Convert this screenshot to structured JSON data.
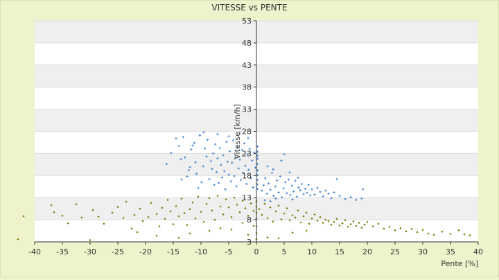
{
  "chart_data": {
    "type": "scatter",
    "title": "VITESSE vs PENTE",
    "xlabel": "Pente [%]",
    "ylabel": "Vitesse [km/h]",
    "xlim": [
      -40,
      40
    ],
    "ylim": [
      3,
      53
    ],
    "x_ticks": [
      "-40",
      "-35",
      "-30",
      "-25",
      "-20",
      "-15",
      "-10",
      "-5",
      "0",
      "5",
      "10",
      "15",
      "20",
      "25",
      "30",
      "35",
      "40"
    ],
    "y_ticks": [
      "3",
      "8",
      "13",
      "18",
      "23",
      "28",
      "33",
      "38",
      "43",
      "48",
      "53"
    ],
    "grid": "alternating horizontal bands",
    "legend": "none",
    "series": [
      {
        "color": "#3a7fd0",
        "marker": "plus",
        "values": [
          [
            -16.2,
            20.6
          ],
          [
            -15.4,
            23.1
          ],
          [
            -14.5,
            26.4
          ],
          [
            -14.0,
            24.7
          ],
          [
            -13.6,
            21.7
          ],
          [
            -13.2,
            26.7
          ],
          [
            -12.9,
            22.1
          ],
          [
            -12.5,
            17.8
          ],
          [
            -12.2,
            19.2
          ],
          [
            -11.8,
            23.9
          ],
          [
            -11.5,
            24.8
          ],
          [
            -11.2,
            25.4
          ],
          [
            -10.8,
            18.4
          ],
          [
            -10.5,
            15.2
          ],
          [
            -10.2,
            27.1
          ],
          [
            -9.9,
            16.5
          ],
          [
            -9.6,
            20.1
          ],
          [
            -9.3,
            24.1
          ],
          [
            -9.0,
            22.3
          ],
          [
            -8.8,
            26.1
          ],
          [
            -8.5,
            17.2
          ],
          [
            -8.2,
            21.3
          ],
          [
            -8.0,
            19.5
          ],
          [
            -7.8,
            23.0
          ],
          [
            -7.6,
            15.9
          ],
          [
            -7.4,
            25.1
          ],
          [
            -7.2,
            18.8
          ],
          [
            -7.0,
            21.9
          ],
          [
            -6.8,
            16.3
          ],
          [
            -6.6,
            24.2
          ],
          [
            -6.4,
            20.4
          ],
          [
            -6.2,
            17.5
          ],
          [
            -6.0,
            22.6
          ],
          [
            -5.8,
            19.0
          ],
          [
            -5.6,
            14.9
          ],
          [
            -5.4,
            25.6
          ],
          [
            -5.2,
            21.1
          ],
          [
            -5.0,
            18.2
          ],
          [
            -4.8,
            23.5
          ],
          [
            -4.6,
            16.7
          ],
          [
            -4.4,
            20.9
          ],
          [
            -4.2,
            26.0
          ],
          [
            -4.0,
            17.9
          ],
          [
            -3.8,
            22.2
          ],
          [
            -3.6,
            15.6
          ],
          [
            -3.4,
            24.5
          ],
          [
            -3.2,
            19.6
          ],
          [
            -3.0,
            21.6
          ],
          [
            -2.8,
            17.0
          ],
          [
            -2.6,
            23.8
          ],
          [
            -2.4,
            18.6
          ],
          [
            -2.2,
            25.3
          ],
          [
            -2.0,
            20.2
          ],
          [
            -1.8,
            16.1
          ],
          [
            -1.6,
            22.8
          ],
          [
            -1.4,
            19.3
          ],
          [
            -1.2,
            24.0
          ],
          [
            -1.0,
            17.4
          ],
          [
            -0.8,
            21.4
          ],
          [
            -0.6,
            15.3
          ],
          [
            -0.4,
            23.2
          ],
          [
            -0.2,
            19.8
          ],
          [
            -9.5,
            27.8
          ],
          [
            -7.0,
            27.4
          ],
          [
            -5.0,
            26.9
          ],
          [
            -3.0,
            27.6
          ],
          [
            -1.5,
            26.5
          ],
          [
            -11.0,
            21.0
          ],
          [
            -12.0,
            19.9
          ],
          [
            -13.5,
            17.1
          ],
          [
            0.2,
            23.4
          ],
          [
            0.2,
            21.8
          ],
          [
            0.2,
            20.6
          ],
          [
            0.2,
            19.2
          ],
          [
            0.2,
            18.1
          ],
          [
            0.2,
            17.0
          ],
          [
            0.2,
            16.0
          ],
          [
            0.2,
            15.0
          ],
          [
            0.2,
            22.5
          ],
          [
            0.2,
            24.6
          ],
          [
            1.0,
            14.6
          ],
          [
            1.3,
            15.8
          ],
          [
            1.6,
            17.4
          ],
          [
            1.9,
            13.9
          ],
          [
            2.2,
            16.2
          ],
          [
            2.5,
            14.8
          ],
          [
            2.8,
            18.6
          ],
          [
            3.1,
            13.4
          ],
          [
            3.4,
            15.5
          ],
          [
            3.7,
            16.9
          ],
          [
            4.0,
            14.2
          ],
          [
            4.3,
            17.8
          ],
          [
            4.6,
            13.1
          ],
          [
            4.9,
            15.1
          ],
          [
            5.2,
            16.5
          ],
          [
            5.5,
            14.0
          ],
          [
            5.8,
            17.1
          ],
          [
            6.1,
            13.6
          ],
          [
            6.4,
            15.7
          ],
          [
            6.7,
            14.4
          ],
          [
            7.0,
            16.8
          ],
          [
            7.3,
            13.2
          ],
          [
            7.6,
            15.3
          ],
          [
            7.9,
            14.7
          ],
          [
            8.2,
            16.1
          ],
          [
            8.5,
            13.8
          ],
          [
            8.8,
            15.0
          ],
          [
            9.1,
            14.1
          ],
          [
            9.4,
            15.9
          ],
          [
            9.7,
            13.5
          ],
          [
            10.0,
            14.9
          ],
          [
            10.5,
            13.7
          ],
          [
            11.0,
            15.2
          ],
          [
            11.5,
            14.3
          ],
          [
            12.0,
            13.3
          ],
          [
            12.5,
            14.6
          ],
          [
            13.0,
            13.9
          ],
          [
            13.5,
            12.9
          ],
          [
            14.0,
            14.2
          ],
          [
            15.0,
            13.4
          ],
          [
            16.0,
            12.7
          ],
          [
            17.0,
            13.1
          ],
          [
            18.0,
            12.5
          ],
          [
            19.0,
            12.8
          ],
          [
            19.2,
            14.9
          ],
          [
            14.5,
            17.2
          ],
          [
            2.0,
            20.1
          ],
          [
            3.0,
            19.4
          ],
          [
            4.5,
            21.4
          ],
          [
            5.0,
            22.8
          ],
          [
            6.0,
            18.7
          ],
          [
            7.5,
            17.5
          ],
          [
            1.5,
            12.4
          ],
          [
            2.5,
            12.2
          ],
          [
            3.5,
            12.8
          ],
          [
            6.5,
            12.6
          ]
        ]
      },
      {
        "color": "#7a7a00",
        "marker": "diamond",
        "values": [
          [
            -43.0,
            3.6
          ],
          [
            -42.0,
            8.8
          ],
          [
            -37.0,
            11.3
          ],
          [
            -36.5,
            9.7
          ],
          [
            -35.0,
            8.9
          ],
          [
            -34.0,
            7.2
          ],
          [
            -32.5,
            11.5
          ],
          [
            -31.5,
            8.5
          ],
          [
            -30.0,
            3.4
          ],
          [
            -29.5,
            10.2
          ],
          [
            -28.5,
            8.7
          ],
          [
            -27.5,
            7.1
          ],
          [
            -26.0,
            9.6
          ],
          [
            -25.0,
            10.9
          ],
          [
            -24.0,
            8.4
          ],
          [
            -23.5,
            12.1
          ],
          [
            -22.5,
            6.0
          ],
          [
            -22.0,
            9.1
          ],
          [
            -21.0,
            10.5
          ],
          [
            -20.5,
            7.7
          ],
          [
            -19.5,
            8.6
          ],
          [
            -19.0,
            11.8
          ],
          [
            -18.0,
            9.3
          ],
          [
            -17.5,
            6.5
          ],
          [
            -17.0,
            10.7
          ],
          [
            -16.5,
            8.2
          ],
          [
            -16.0,
            12.5
          ],
          [
            -15.5,
            9.9
          ],
          [
            -15.0,
            7.0
          ],
          [
            -14.5,
            11.1
          ],
          [
            -14.0,
            8.8
          ],
          [
            -13.5,
            12.8
          ],
          [
            -13.0,
            9.5
          ],
          [
            -12.5,
            6.8
          ],
          [
            -12.0,
            10.4
          ],
          [
            -11.5,
            11.9
          ],
          [
            -11.0,
            8.3
          ],
          [
            -10.5,
            13.2
          ],
          [
            -10.0,
            9.8
          ],
          [
            -9.5,
            7.5
          ],
          [
            -9.0,
            11.6
          ],
          [
            -8.5,
            12.9
          ],
          [
            -8.0,
            10.1
          ],
          [
            -7.5,
            8.0
          ],
          [
            -7.0,
            13.4
          ],
          [
            -6.5,
            11.0
          ],
          [
            -6.0,
            9.2
          ],
          [
            -5.5,
            12.6
          ],
          [
            -5.0,
            10.8
          ],
          [
            -4.5,
            8.6
          ],
          [
            -4.0,
            13.0
          ],
          [
            -3.5,
            11.4
          ],
          [
            -3.0,
            9.7
          ],
          [
            -2.5,
            12.3
          ],
          [
            -2.0,
            10.6
          ],
          [
            -1.5,
            8.9
          ],
          [
            -1.0,
            11.7
          ],
          [
            -0.5,
            10.0
          ],
          [
            -0.5,
            6.6
          ],
          [
            -2.5,
            7.3
          ],
          [
            -4.5,
            5.8
          ],
          [
            -6.5,
            6.1
          ],
          [
            -8.5,
            5.5
          ],
          [
            -12.0,
            4.9
          ],
          [
            -14.0,
            3.9
          ],
          [
            -18.0,
            4.4
          ],
          [
            -21.5,
            5.2
          ],
          [
            0.0,
            3.6
          ],
          [
            0.0,
            5.0
          ],
          [
            0.0,
            6.5
          ],
          [
            0.0,
            8.2
          ],
          [
            0.0,
            9.6
          ],
          [
            0.0,
            11.0
          ],
          [
            0.0,
            12.2
          ],
          [
            0.5,
            10.4
          ],
          [
            1.0,
            9.1
          ],
          [
            1.5,
            11.6
          ],
          [
            2.0,
            8.4
          ],
          [
            2.5,
            10.8
          ],
          [
            3.0,
            7.6
          ],
          [
            3.5,
            9.9
          ],
          [
            4.0,
            11.2
          ],
          [
            4.5,
            8.1
          ],
          [
            5.0,
            9.4
          ],
          [
            5.5,
            10.6
          ],
          [
            6.0,
            7.9
          ],
          [
            6.5,
            9.0
          ],
          [
            7.0,
            8.5
          ],
          [
            7.5,
            10.1
          ],
          [
            8.0,
            7.4
          ],
          [
            8.5,
            8.8
          ],
          [
            9.0,
            9.6
          ],
          [
            9.5,
            7.1
          ],
          [
            10.0,
            8.3
          ],
          [
            10.5,
            9.2
          ],
          [
            11.0,
            7.8
          ],
          [
            11.5,
            8.6
          ],
          [
            12.0,
            7.3
          ],
          [
            12.5,
            8.0
          ],
          [
            13.0,
            7.7
          ],
          [
            13.5,
            6.9
          ],
          [
            14.0,
            7.5
          ],
          [
            14.5,
            8.2
          ],
          [
            15.0,
            6.7
          ],
          [
            15.5,
            7.2
          ],
          [
            16.0,
            7.9
          ],
          [
            16.5,
            6.4
          ],
          [
            17.0,
            7.0
          ],
          [
            17.5,
            7.6
          ],
          [
            18.0,
            6.6
          ],
          [
            18.5,
            7.3
          ],
          [
            19.0,
            6.2
          ],
          [
            19.5,
            6.9
          ],
          [
            20.0,
            7.5
          ],
          [
            21.0,
            6.5
          ],
          [
            22.0,
            7.1
          ],
          [
            23.0,
            6.0
          ],
          [
            24.0,
            6.4
          ],
          [
            25.0,
            5.6
          ],
          [
            26.0,
            6.1
          ],
          [
            27.0,
            5.4
          ],
          [
            28.0,
            5.9
          ],
          [
            29.0,
            5.2
          ],
          [
            30.0,
            5.7
          ],
          [
            31.0,
            4.9
          ],
          [
            32.0,
            4.6
          ],
          [
            33.5,
            5.3
          ],
          [
            35.0,
            4.8
          ],
          [
            36.5,
            5.6
          ],
          [
            37.5,
            4.7
          ],
          [
            38.5,
            4.5
          ],
          [
            2.0,
            4.0
          ],
          [
            4.0,
            3.8
          ],
          [
            6.5,
            5.1
          ],
          [
            9.0,
            5.5
          ],
          [
            -1.5,
            4.6
          ]
        ]
      }
    ]
  }
}
